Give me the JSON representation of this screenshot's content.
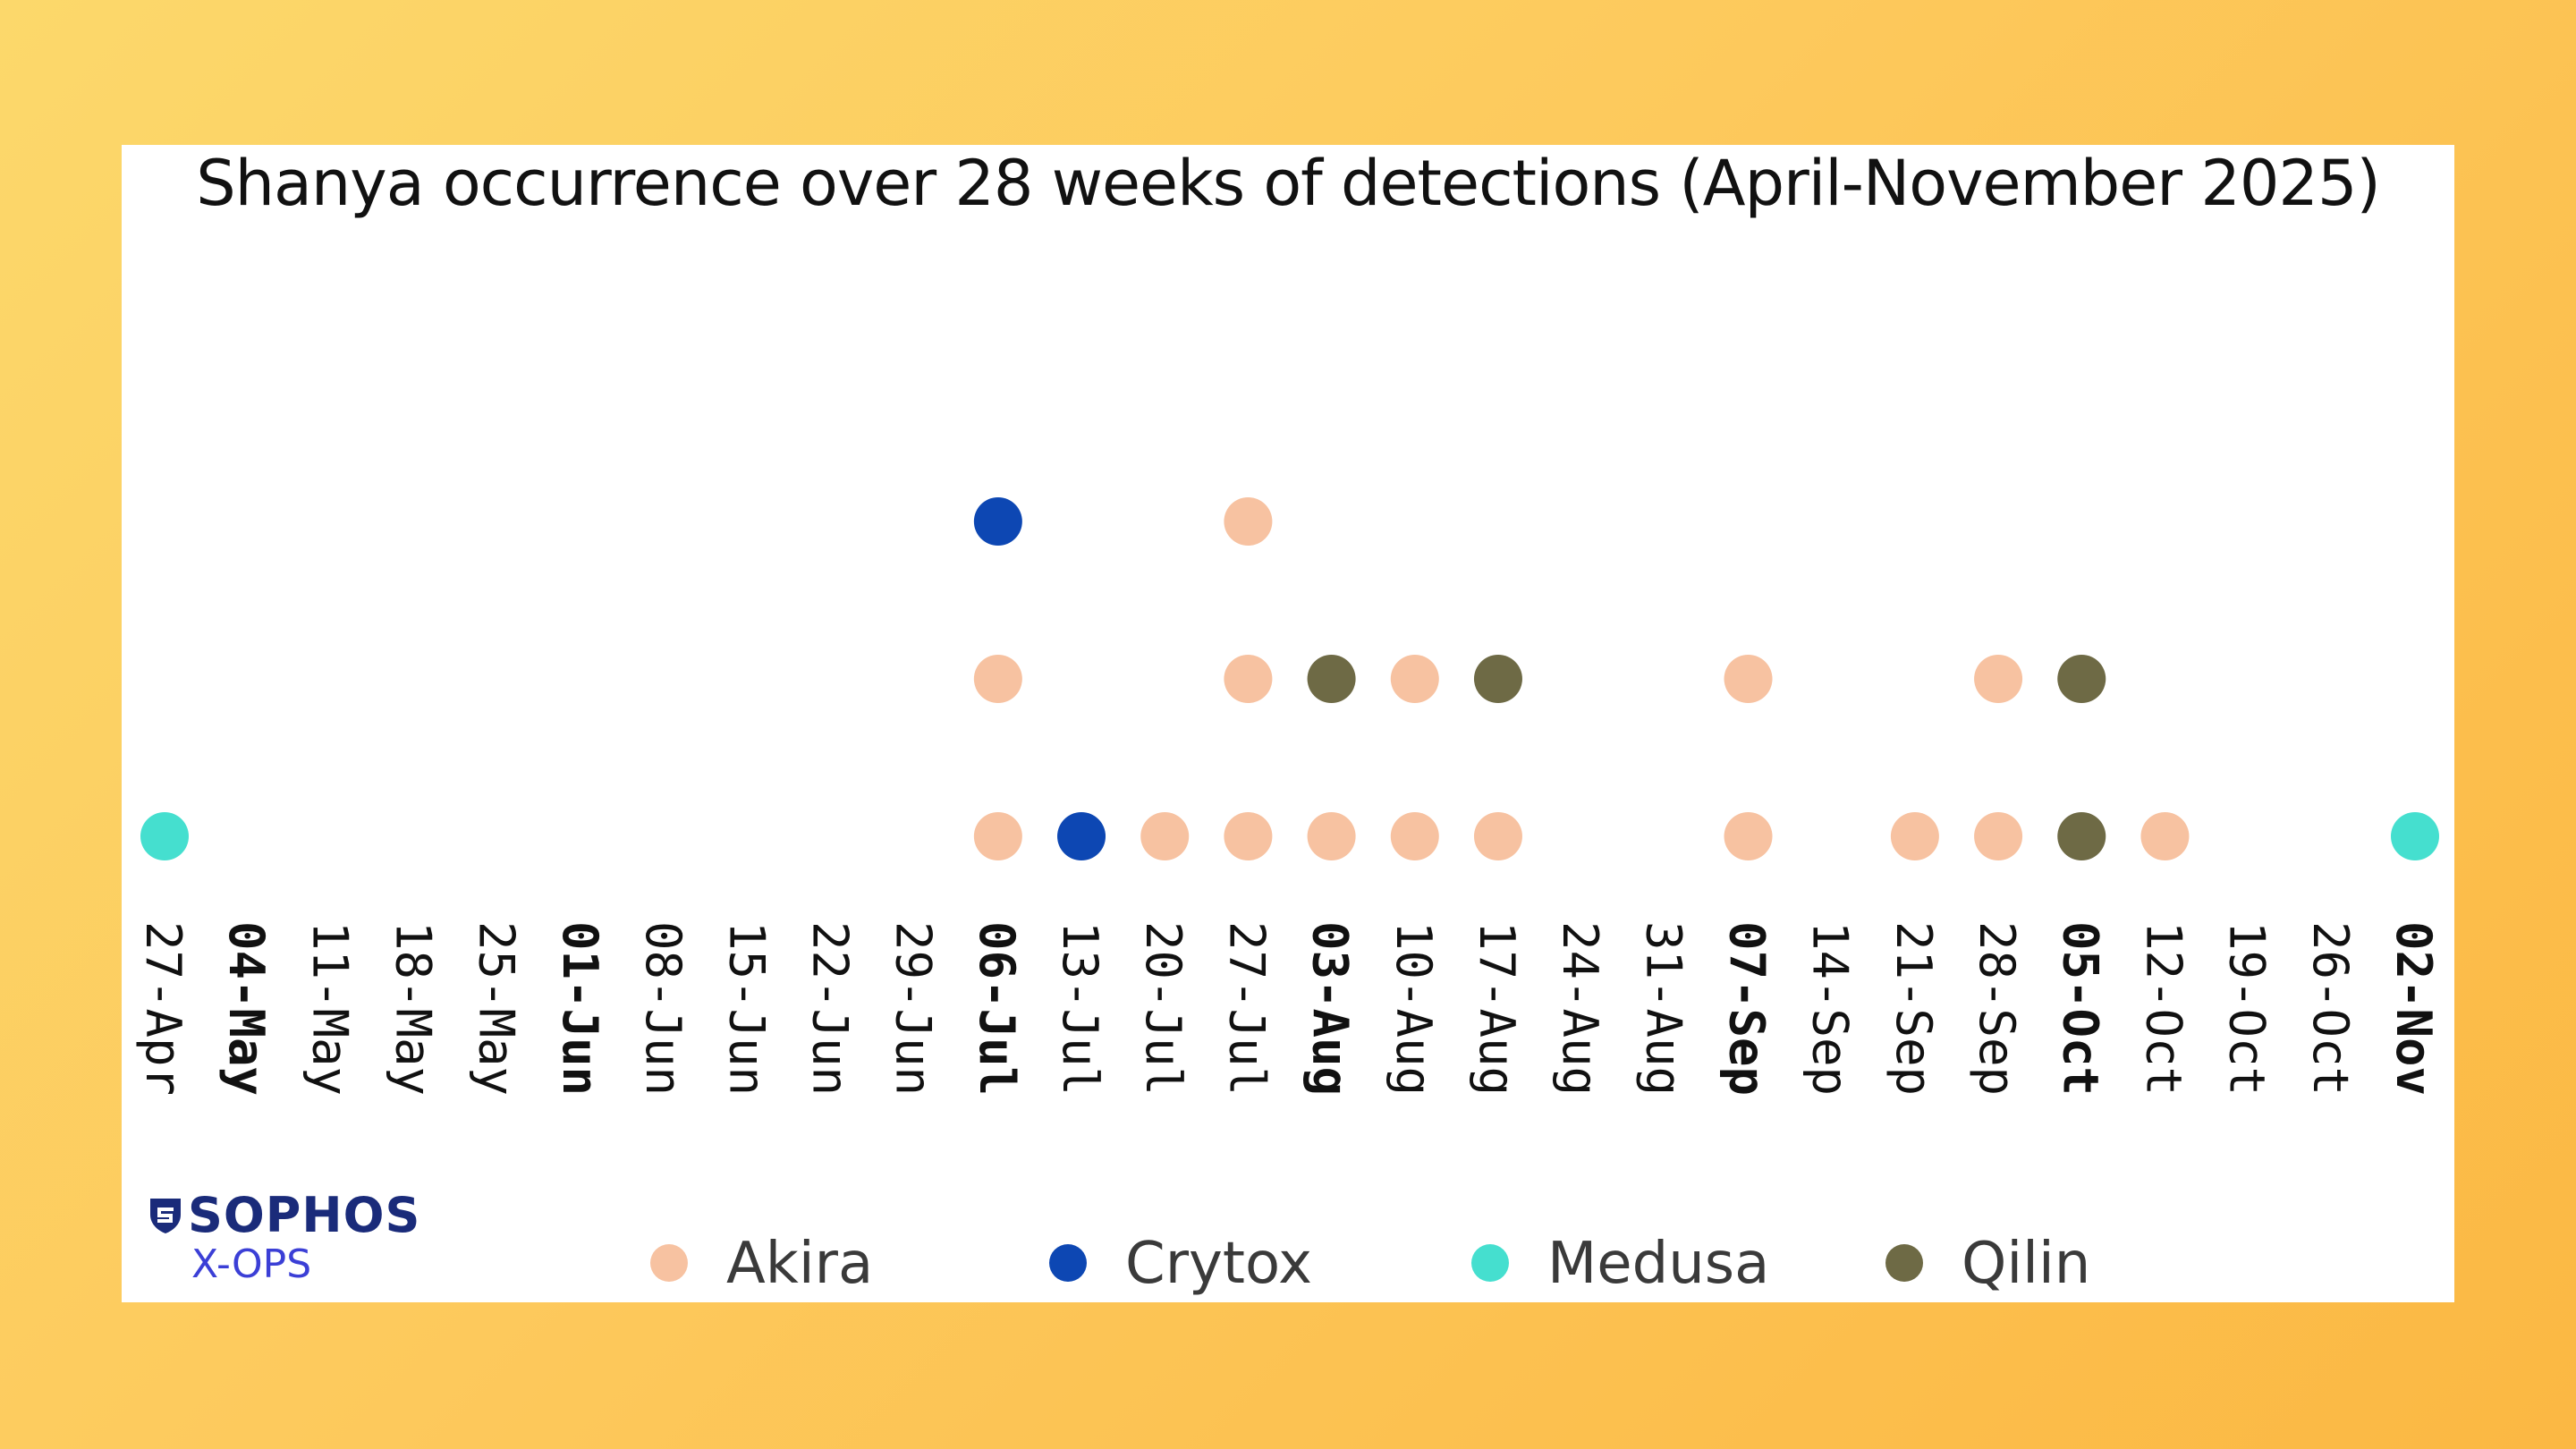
{
  "brand": {
    "name": "SOPHOS",
    "sub": "X-OPS"
  },
  "colors": {
    "Akira": "#f7c2a1",
    "Crytox": "#0d47b3",
    "Medusa": "#45dfcf",
    "Qilin": "#6e6a45"
  },
  "chart_data": {
    "type": "scatter",
    "title": "Shanya occurrence over 28 weeks of detections (April-November 2025)",
    "xlabel": "",
    "ylabel": "",
    "grid": false,
    "legend_position": "bottom",
    "categories": [
      "27-Apr",
      "04-May",
      "11-May",
      "18-May",
      "25-May",
      "01-Jun",
      "08-Jun",
      "15-Jun",
      "22-Jun",
      "29-Jun",
      "06-Jul",
      "13-Jul",
      "20-Jul",
      "27-Jul",
      "03-Aug",
      "10-Aug",
      "17-Aug",
      "24-Aug",
      "31-Aug",
      "07-Sep",
      "14-Sep",
      "21-Sep",
      "28-Sep",
      "05-Oct",
      "12-Oct",
      "19-Oct",
      "26-Oct",
      "02-Nov"
    ],
    "bold_categories": [
      "04-May",
      "01-Jun",
      "06-Jul",
      "03-Aug",
      "07-Sep",
      "05-Oct",
      "02-Nov"
    ],
    "series": [
      {
        "name": "Akira",
        "points": [
          {
            "x": "06-Jul",
            "level": 1
          },
          {
            "x": "06-Jul",
            "level": 2
          },
          {
            "x": "20-Jul",
            "level": 1
          },
          {
            "x": "27-Jul",
            "level": 1
          },
          {
            "x": "27-Jul",
            "level": 2
          },
          {
            "x": "27-Jul",
            "level": 3
          },
          {
            "x": "03-Aug",
            "level": 1
          },
          {
            "x": "10-Aug",
            "level": 1
          },
          {
            "x": "10-Aug",
            "level": 2
          },
          {
            "x": "17-Aug",
            "level": 1
          },
          {
            "x": "07-Sep",
            "level": 1
          },
          {
            "x": "07-Sep",
            "level": 2
          },
          {
            "x": "21-Sep",
            "level": 1
          },
          {
            "x": "28-Sep",
            "level": 1
          },
          {
            "x": "28-Sep",
            "level": 2
          },
          {
            "x": "12-Oct",
            "level": 1
          }
        ]
      },
      {
        "name": "Crytox",
        "points": [
          {
            "x": "06-Jul",
            "level": 3
          },
          {
            "x": "13-Jul",
            "level": 1
          }
        ]
      },
      {
        "name": "Medusa",
        "points": [
          {
            "x": "27-Apr",
            "level": 1
          },
          {
            "x": "02-Nov",
            "level": 1
          }
        ]
      },
      {
        "name": "Qilin",
        "points": [
          {
            "x": "03-Aug",
            "level": 2
          },
          {
            "x": "17-Aug",
            "level": 2
          },
          {
            "x": "05-Oct",
            "level": 1
          },
          {
            "x": "05-Oct",
            "level": 2
          }
        ]
      }
    ],
    "ylim": [
      0,
      5
    ]
  }
}
